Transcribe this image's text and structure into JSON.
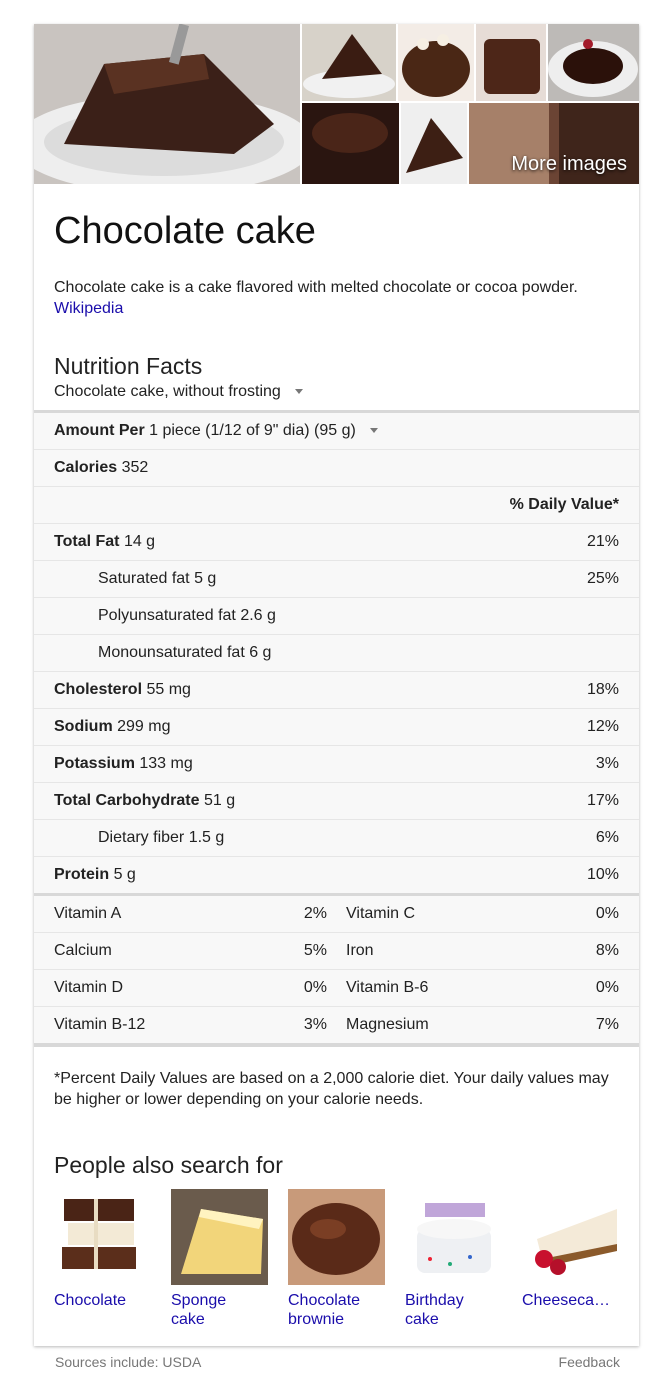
{
  "images": {
    "more_label": "More images"
  },
  "title": "Chocolate cake",
  "description": "Chocolate cake is a cake flavored with melted chocolate or cocoa powder.",
  "description_link": "Wikipedia",
  "nutrition": {
    "heading": "Nutrition Facts",
    "variant": "Chocolate cake, without frosting",
    "amount_label": "Amount Per",
    "amount_value": "1 piece (1/12 of 9\" dia) (95 g)",
    "calories_label": "Calories",
    "calories_value": "352",
    "dv_header": "% Daily Value*",
    "nutrients": [
      {
        "name": "Total Fat",
        "amount": "14 g",
        "pct": "21%"
      },
      {
        "name": "Saturated fat 5 g",
        "amount": "",
        "pct": "25%"
      },
      {
        "name": "Polyunsaturated fat 2.6 g",
        "amount": "",
        "pct": ""
      },
      {
        "name": "Monounsaturated fat 6 g",
        "amount": "",
        "pct": ""
      },
      {
        "name": "Cholesterol",
        "amount": "55 mg",
        "pct": "18%"
      },
      {
        "name": "Sodium",
        "amount": "299 mg",
        "pct": "12%"
      },
      {
        "name": "Potassium",
        "amount": "133 mg",
        "pct": "3%"
      },
      {
        "name": "Total Carbohydrate",
        "amount": "51 g",
        "pct": "17%"
      },
      {
        "name": "Dietary fiber 1.5 g",
        "amount": "",
        "pct": "6%"
      },
      {
        "name": "Protein",
        "amount": "5 g",
        "pct": "10%"
      }
    ],
    "vitamins": [
      {
        "a": "Vitamin A",
        "ap": "2%",
        "b": "Vitamin C",
        "bp": "0%"
      },
      {
        "a": "Calcium",
        "ap": "5%",
        "b": "Iron",
        "bp": "8%"
      },
      {
        "a": "Vitamin D",
        "ap": "0%",
        "b": "Vitamin B-6",
        "bp": "0%"
      },
      {
        "a": "Vitamin B-12",
        "ap": "3%",
        "b": "Magnesium",
        "bp": "7%"
      }
    ],
    "footnote": "*Percent Daily Values are based on a 2,000 calorie diet. Your daily values may be higher or lower depending on your calorie needs."
  },
  "people_also_search": {
    "heading": "People also search for",
    "items": [
      {
        "label": "Chocolate"
      },
      {
        "label": "Sponge\ncake"
      },
      {
        "label": "Chocolate\nbrownie"
      },
      {
        "label": "Birthday\ncake"
      },
      {
        "label": "Cheeseca…"
      }
    ]
  },
  "footer": {
    "sources": "Sources include: USDA",
    "feedback": "Feedback"
  }
}
